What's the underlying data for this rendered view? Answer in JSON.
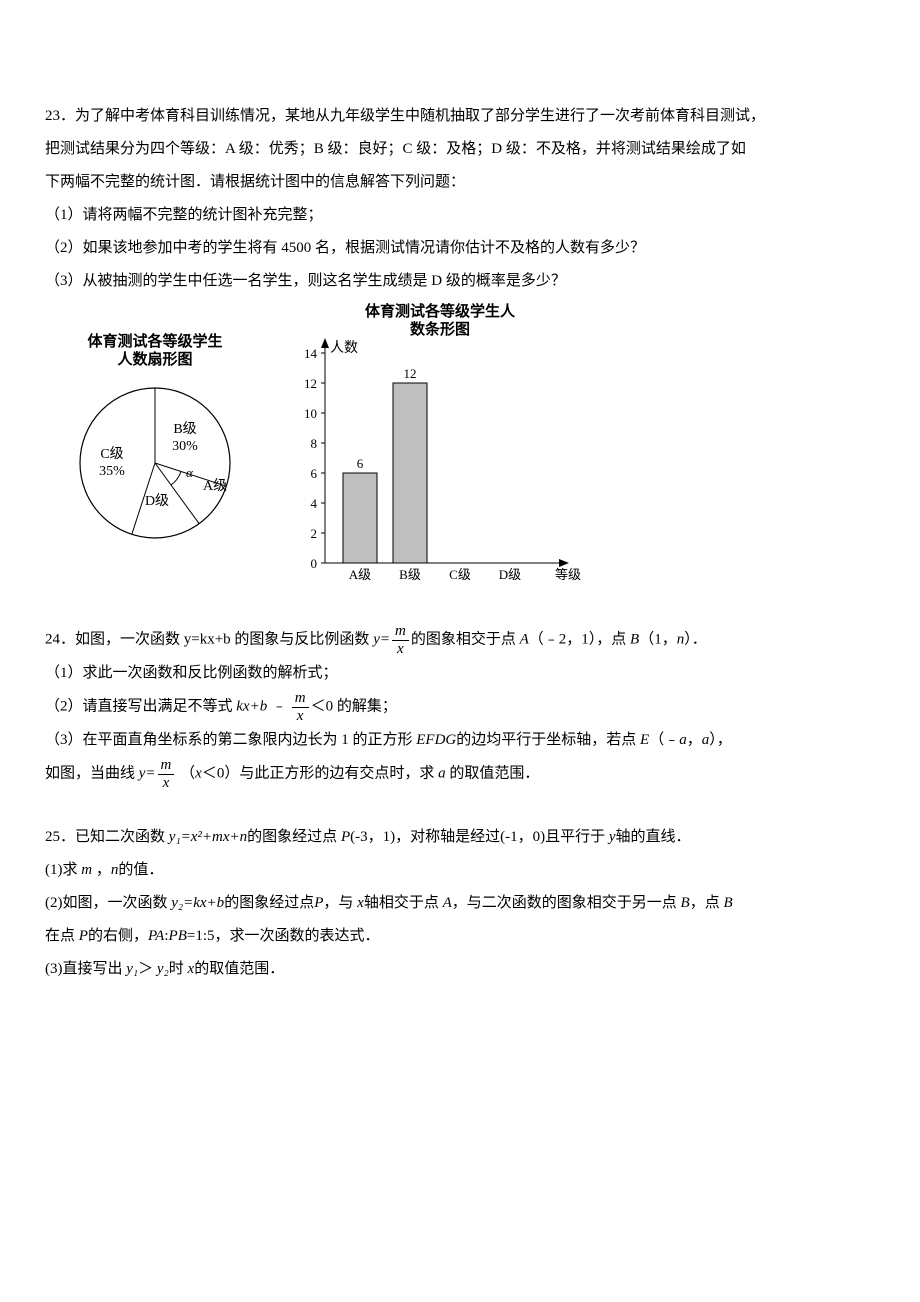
{
  "q23": {
    "num": "23．",
    "line1": "为了解中考体育科目训练情况，某地从九年级学生中随机抽取了部分学生进行了一次考前体育科目测试，",
    "line2": "把测试结果分为四个等级：A 级：优秀；",
    "line2b": "B 级：良好；C 级：及格；D 级：不及格，并将测试结果绘成了如",
    "line3": "下两幅不完整的统计图．请根据统计图中的信息解答下列问题：",
    "p1": "（1）请将两幅不完整的统计图补充完整；",
    "p2": "（2）如果该地参加中考的学生将有 4500 名，根据测试情况请你估计不及格的人数有多少？",
    "p3": "（3）从被抽测的学生中任选一名学生，则这名学生成绩是 D 级的概率是多少？",
    "pie_title1": "体育测试各等级学生",
    "pie_title2": "人数扇形图",
    "pie_b": "B级",
    "pie_b_pct": "30%",
    "pie_c": "C级",
    "pie_c_pct": "35%",
    "pie_a": "A级",
    "pie_alpha": "α",
    "pie_d": "D级",
    "bar_title1": "体育测试各等级学生人",
    "bar_title2": "数条形图",
    "bar_yaxis_label": "人数",
    "bar_xaxis_label": "等级",
    "bar_yticks": [
      "0",
      "2",
      "4",
      "6",
      "8",
      "10",
      "12",
      "14"
    ],
    "bar_categories": [
      "A级",
      "B级",
      "C级",
      "D级"
    ],
    "bar_data": {
      "A": {
        "value": 6,
        "label": "6"
      },
      "B": {
        "value": 12,
        "label": "12"
      }
    },
    "bar_fill": "#bfbfbf",
    "bar_stroke": "#000000"
  },
  "q24": {
    "num": "24．",
    "line1a": "如图，一次函数 y=kx+b 的图象与反比例函数 ",
    "y_eq": "y=",
    "line1b": "的图象相交于点 ",
    "A": "A",
    "ptA": "（﹣2，1），点 ",
    "B": "B",
    "ptB": "（1，",
    "n": "n",
    "ptB_end": "）．",
    "p1": "（1）求此一次函数和反比例函数的解析式；",
    "p2a": "（2）请直接写出满足不等式 ",
    "kxb": "kx+b ﹣ ",
    "p2b": "＜0 的解集；",
    "p3a": "（3）在平面直角坐标系的第二象限内边长为 1 的正方形 ",
    "EFDG": "EFDG",
    "p3b": "的边均平行于坐标轴，若点 ",
    "E": "E",
    "ptE": "（﹣",
    "a1": "a",
    "comma": "，",
    "a2": "a",
    "ptE_end": "），",
    "p4a": "如图，当曲线 ",
    "p4b": "（",
    "x": "x",
    "lt0": "＜0）与此正方形的边有交点时，求 ",
    "a3": "a",
    "p4c": " 的取值范围．",
    "frac_num": "m",
    "frac_den": "x"
  },
  "q25": {
    "num": "25．",
    "line1a": "已知二次函数 ",
    "y1eq": "y₁=x²+mx+n",
    "line1b": "的图象经过点 ",
    "P": "P",
    "ptP": "(-3，1)，对称轴是经过(-1，0)且平行于 ",
    "yax": "y",
    "line1c": "轴的直线．",
    "p1a": "(1)求 ",
    "m": "m",
    "sep": " ，",
    "n": "n",
    "p1b": "的值．",
    "p2a": "(2)如图，一次函数 ",
    "y2eq": "y₂=kx+b",
    "p2b": "的图象经过点",
    "p2c": "，与 ",
    "xax": "x",
    "p2d": "轴相交于点 ",
    "A": "A",
    "p2e": "，与二次函数的图象相交于另一点 ",
    "B": "B",
    "p2f": "，点 ",
    "p2g": "在点 ",
    "p2h": "的右侧，",
    "PA": "PA",
    "colon": ":",
    "PB": "PB",
    "ratio": "=1:5，求一次函数的表达式．",
    "p3a": "(3)直接写出 ",
    "y1": "y₁",
    "gt": "＞ ",
    "y2": "y₂",
    "p3b": "时 ",
    "p3c": "的取值范围．"
  }
}
